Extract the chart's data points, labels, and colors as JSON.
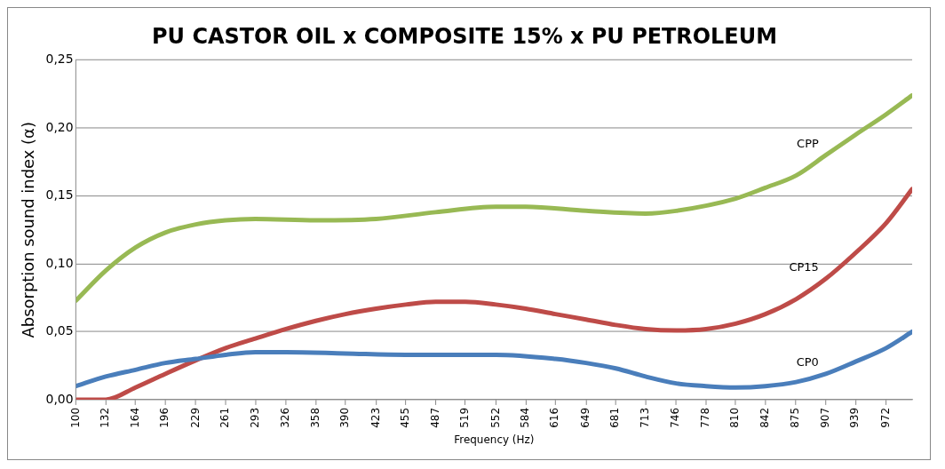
{
  "chart_data": {
    "type": "line",
    "title": "PU CASTOR OIL x COMPOSITE 15% x PU PETROLEUM",
    "xlabel": "Frequency (Hz)",
    "ylabel": "Absorption sound index (α)",
    "xlim": [
      100,
      1000
    ],
    "xticks": [
      100,
      132,
      164,
      196,
      229,
      261,
      293,
      326,
      358,
      390,
      423,
      455,
      487,
      519,
      552,
      584,
      616,
      649,
      681,
      713,
      746,
      778,
      810,
      842,
      875,
      907,
      939,
      972
    ],
    "ylim": [
      0,
      0.25
    ],
    "yticks": [
      {
        "value": 0,
        "label": "0,00"
      },
      {
        "value": 0.05,
        "label": "0,05"
      },
      {
        "value": 0.1,
        "label": "0,10"
      },
      {
        "value": 0.15,
        "label": "0,15"
      },
      {
        "value": 0.2,
        "label": "0,20"
      },
      {
        "value": 0.25,
        "label": "0,25"
      }
    ],
    "grid": "y",
    "legend": false,
    "marker": "none",
    "line_style": "solid",
    "series": [
      {
        "name": "CP0",
        "color": "#4a7ebb",
        "x": [
          100,
          132,
          164,
          196,
          229,
          261,
          293,
          326,
          390,
          455,
          552,
          616,
          649,
          681,
          713,
          746,
          778,
          810,
          842,
          875,
          907,
          939,
          972,
          1000
        ],
        "values": [
          0.01,
          0.017,
          0.022,
          0.027,
          0.03,
          0.033,
          0.035,
          0.035,
          0.034,
          0.033,
          0.033,
          0.03,
          0.027,
          0.023,
          0.017,
          0.012,
          0.01,
          0.009,
          0.01,
          0.013,
          0.019,
          0.028,
          0.038,
          0.05
        ]
      },
      {
        "name": "CP15",
        "color": "#be4b48",
        "x": [
          100,
          132,
          164,
          196,
          229,
          261,
          293,
          326,
          358,
          390,
          423,
          455,
          487,
          519,
          552,
          584,
          616,
          649,
          681,
          713,
          746,
          778,
          810,
          842,
          875,
          907,
          939,
          972,
          1000
        ],
        "values": [
          0,
          0,
          0.009,
          0.019,
          0.029,
          0.038,
          0.045,
          0.052,
          0.058,
          0.063,
          0.067,
          0.07,
          0.072,
          0.072,
          0.07,
          0.067,
          0.063,
          0.059,
          0.055,
          0.052,
          0.051,
          0.052,
          0.056,
          0.063,
          0.074,
          0.089,
          0.108,
          0.13,
          0.155
        ]
      },
      {
        "name": "CPP",
        "color": "#98b954",
        "x": [
          100,
          132,
          164,
          196,
          229,
          261,
          293,
          358,
          423,
          487,
          552,
          584,
          649,
          713,
          746,
          810,
          842,
          875,
          907,
          939,
          972,
          1000
        ],
        "values": [
          0.073,
          0.095,
          0.112,
          0.123,
          0.129,
          0.132,
          0.133,
          0.132,
          0.133,
          0.138,
          0.142,
          0.142,
          0.139,
          0.137,
          0.139,
          0.148,
          0.156,
          0.165,
          0.18,
          0.195,
          0.21,
          0.224
        ]
      }
    ]
  }
}
